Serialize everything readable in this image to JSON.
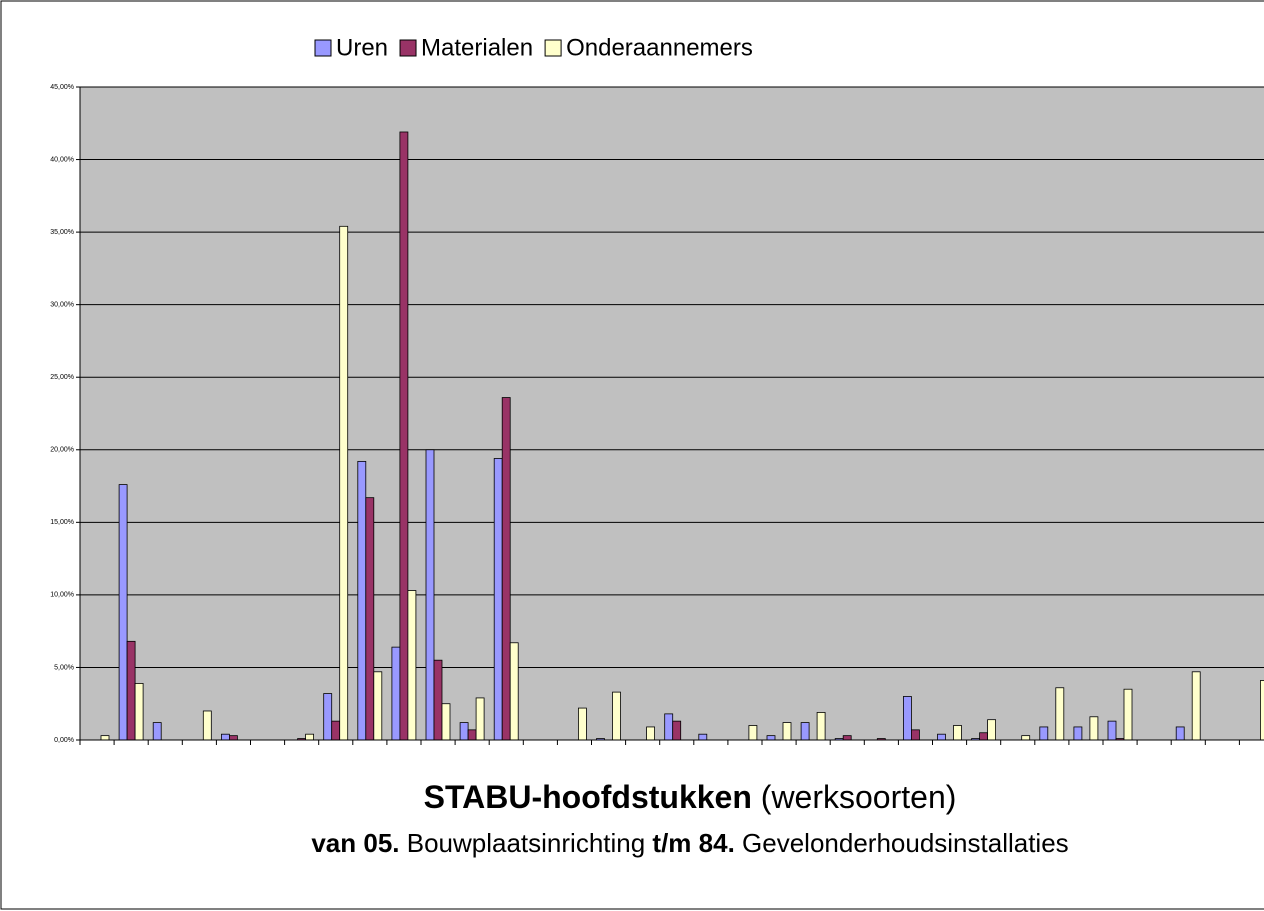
{
  "chart_data": {
    "type": "bar",
    "legend": "top",
    "title_parts": [
      "STABU-hoofdstukken",
      " (werksoorten)"
    ],
    "subtitle_parts": [
      "van 05.",
      " Bouwplaatsinrichting ",
      "t/m 84.",
      " Gevelonderhoudsinstallaties"
    ],
    "categories": [
      null,
      null,
      null,
      null,
      null,
      null,
      null,
      null,
      null,
      null,
      null,
      null,
      null,
      null,
      null,
      null,
      null,
      null,
      null,
      null,
      null,
      null,
      null,
      null,
      null,
      null,
      null,
      null,
      null,
      null,
      null,
      null,
      null,
      null,
      null
    ],
    "series": [
      {
        "name": "Uren",
        "color": "#9999ff",
        "values": [
          0,
          17.6,
          1.2,
          0,
          0.4,
          0,
          0,
          3.2,
          19.2,
          6.4,
          20.0,
          1.2,
          19.4,
          0,
          0,
          0.1,
          0,
          1.8,
          0.4,
          0,
          0.3,
          1.2,
          0.1,
          0,
          3.0,
          0.4,
          0.1,
          0,
          0.9,
          0.9,
          1.3,
          0,
          0.9,
          0,
          0
        ]
      },
      {
        "name": "Materialen",
        "color": "#993366",
        "values": [
          0,
          6.8,
          0,
          0,
          0.3,
          0,
          0.1,
          1.3,
          16.7,
          41.9,
          5.5,
          0.7,
          23.6,
          0,
          0,
          0,
          0,
          1.3,
          0,
          0,
          0,
          0,
          0.3,
          0.1,
          0.7,
          0,
          0.5,
          0,
          0,
          0,
          0.1,
          0,
          0,
          0,
          0
        ]
      },
      {
        "name": "Onderaannemers",
        "color": "#ffffcc",
        "values": [
          0.3,
          3.9,
          0,
          2.0,
          0,
          0,
          0.4,
          35.4,
          4.7,
          10.3,
          2.5,
          2.9,
          6.7,
          0,
          2.2,
          3.3,
          0.9,
          0,
          0,
          1.0,
          1.2,
          1.9,
          0,
          0,
          0,
          1.0,
          1.4,
          0.3,
          3.6,
          1.6,
          3.5,
          0,
          4.7,
          0,
          4.1
        ]
      }
    ],
    "ylim": [
      0,
      45
    ],
    "yticks": [
      {
        "value": 0,
        "label": "0,00%"
      },
      {
        "value": 5,
        "label": "5,00%"
      },
      {
        "value": 10,
        "label": "10,00%"
      },
      {
        "value": 15,
        "label": "15,00%"
      },
      {
        "value": 20,
        "label": "20,00%"
      },
      {
        "value": 25,
        "label": "25,00%"
      },
      {
        "value": 30,
        "label": "30,00%"
      },
      {
        "value": 35,
        "label": "35,00%"
      },
      {
        "value": 40,
        "label": "40,00%"
      },
      {
        "value": 45,
        "label": "45,00%"
      }
    ],
    "grid": true,
    "plot_background": "#c0c0c0"
  }
}
